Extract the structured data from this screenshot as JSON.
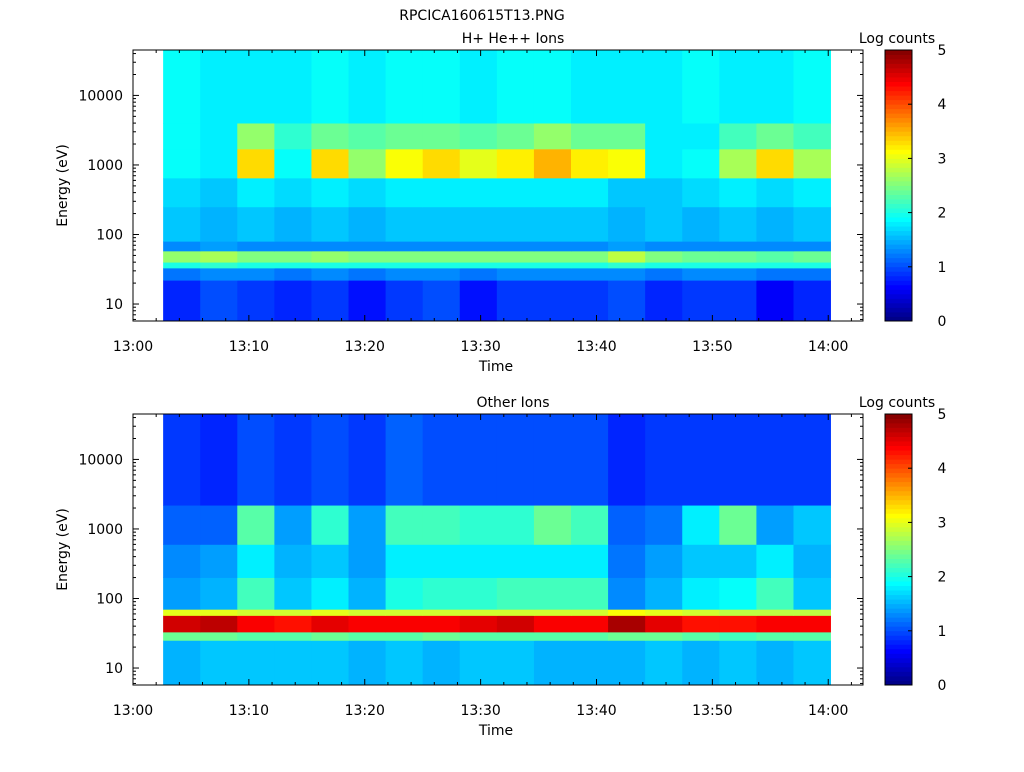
{
  "figure_title": "RPCICA160615T13.PNG",
  "chart_data": [
    {
      "type": "heatmap",
      "title": "H+ He++ Ions",
      "xlabel": "Time",
      "ylabel": "Energy (eV)",
      "colorbar_label": "Log counts",
      "x_ticks": [
        "13:00",
        "13:10",
        "13:20",
        "13:30",
        "13:40",
        "13:50",
        "14:00"
      ],
      "y_ticks": [
        "10",
        "100",
        "1000",
        "10000"
      ],
      "y_scale": "log",
      "x_range": [
        "13:00",
        "14:03"
      ],
      "y_range": [
        5.7,
        45000
      ],
      "colorbar_ticks": [
        "0",
        "1",
        "2",
        "3",
        "4",
        "5"
      ],
      "colorbar_range": [
        0,
        5
      ],
      "colormap": "jet",
      "time_start": "13:02.6",
      "time_end": "14:00.2",
      "time_bins": 18,
      "energy_bands": [
        {
          "energy_range": [
            5.7,
            22
          ],
          "log_counts": [
            0.8,
            1.0,
            0.9,
            0.8,
            0.9,
            0.7,
            0.9,
            1.0,
            0.7,
            0.9,
            0.9,
            0.9,
            1.0,
            0.8,
            0.9,
            0.9,
            0.6,
            0.8
          ]
        },
        {
          "energy_range": [
            22,
            33
          ],
          "log_counts": [
            1.2,
            1.3,
            1.3,
            1.2,
            1.3,
            1.2,
            1.3,
            1.3,
            1.2,
            1.3,
            1.3,
            1.3,
            1.3,
            1.2,
            1.3,
            1.3,
            1.2,
            1.2
          ]
        },
        {
          "energy_range": [
            33,
            40
          ],
          "log_counts": [
            2.0,
            2.1,
            2.0,
            2.0,
            2.0,
            2.0,
            2.0,
            2.0,
            2.0,
            2.0,
            2.0,
            2.0,
            2.1,
            2.0,
            2.0,
            2.0,
            2.0,
            2.0
          ]
        },
        {
          "energy_range": [
            40,
            58
          ],
          "log_counts": [
            2.6,
            2.7,
            2.5,
            2.5,
            2.6,
            2.5,
            2.5,
            2.5,
            2.5,
            2.5,
            2.5,
            2.5,
            2.8,
            2.5,
            2.4,
            2.4,
            2.3,
            2.4
          ]
        },
        {
          "energy_range": [
            58,
            80
          ],
          "log_counts": [
            1.3,
            1.4,
            1.3,
            1.3,
            1.3,
            1.3,
            1.3,
            1.3,
            1.3,
            1.3,
            1.3,
            1.3,
            1.4,
            1.3,
            1.3,
            1.3,
            1.3,
            1.3
          ]
        },
        {
          "energy_range": [
            80,
            250
          ],
          "log_counts": [
            1.6,
            1.5,
            1.6,
            1.5,
            1.6,
            1.5,
            1.6,
            1.6,
            1.6,
            1.6,
            1.6,
            1.6,
            1.5,
            1.6,
            1.5,
            1.6,
            1.5,
            1.6
          ]
        },
        {
          "energy_range": [
            250,
            650
          ],
          "log_counts": [
            1.7,
            1.6,
            1.8,
            1.7,
            1.8,
            1.7,
            1.8,
            1.8,
            1.8,
            1.8,
            1.8,
            1.8,
            1.6,
            1.6,
            1.7,
            1.8,
            1.7,
            1.8
          ]
        },
        {
          "energy_range": [
            650,
            1700
          ],
          "log_counts": [
            1.9,
            1.8,
            3.3,
            1.9,
            3.3,
            2.6,
            3.1,
            3.3,
            3.0,
            3.2,
            3.5,
            3.2,
            3.1,
            1.8,
            1.9,
            2.7,
            3.3,
            2.7
          ]
        },
        {
          "energy_range": [
            1700,
            4000
          ],
          "log_counts": [
            1.9,
            1.8,
            2.6,
            2.1,
            2.4,
            2.3,
            2.4,
            2.4,
            2.3,
            2.4,
            2.6,
            2.4,
            2.4,
            1.8,
            1.8,
            2.2,
            2.4,
            2.2
          ]
        },
        {
          "energy_range": [
            4000,
            45000
          ],
          "log_counts": [
            1.9,
            1.8,
            1.8,
            1.8,
            1.9,
            1.8,
            1.9,
            1.9,
            1.8,
            1.9,
            1.9,
            1.8,
            1.8,
            1.8,
            1.9,
            1.8,
            1.8,
            1.9
          ]
        }
      ]
    },
    {
      "type": "heatmap",
      "title": "Other Ions",
      "xlabel": "Time",
      "ylabel": "Energy (eV)",
      "colorbar_label": "Log counts",
      "x_ticks": [
        "13:00",
        "13:10",
        "13:20",
        "13:30",
        "13:40",
        "13:50",
        "14:00"
      ],
      "y_ticks": [
        "10",
        "100",
        "1000",
        "10000"
      ],
      "y_scale": "log",
      "x_range": [
        "13:00",
        "14:03"
      ],
      "y_range": [
        5.7,
        45000
      ],
      "colorbar_ticks": [
        "0",
        "1",
        "2",
        "3",
        "4",
        "5"
      ],
      "colorbar_range": [
        0,
        5
      ],
      "colormap": "jet",
      "time_start": "13:02.6",
      "time_end": "14:00.2",
      "time_bins": 18,
      "energy_bands": [
        {
          "energy_range": [
            5.7,
            25
          ],
          "log_counts": [
            1.5,
            1.6,
            1.6,
            1.6,
            1.6,
            1.5,
            1.6,
            1.5,
            1.6,
            1.6,
            1.5,
            1.5,
            1.5,
            1.6,
            1.5,
            1.6,
            1.5,
            1.6
          ]
        },
        {
          "energy_range": [
            25,
            33
          ],
          "log_counts": [
            2.4,
            2.4,
            2.3,
            2.3,
            2.4,
            2.3,
            2.3,
            2.4,
            2.3,
            2.3,
            2.3,
            2.3,
            2.4,
            2.4,
            2.3,
            2.2,
            2.3,
            2.3
          ]
        },
        {
          "energy_range": [
            33,
            57
          ],
          "log_counts": [
            4.6,
            4.7,
            4.4,
            4.3,
            4.5,
            4.4,
            4.4,
            4.4,
            4.5,
            4.6,
            4.4,
            4.4,
            4.8,
            4.5,
            4.3,
            4.3,
            4.4,
            4.4
          ]
        },
        {
          "energy_range": [
            57,
            70
          ],
          "log_counts": [
            3.0,
            3.0,
            2.9,
            2.9,
            3.0,
            2.9,
            2.9,
            2.9,
            2.9,
            2.9,
            2.9,
            2.9,
            3.1,
            3.0,
            2.9,
            2.8,
            2.8,
            2.8
          ]
        },
        {
          "energy_range": [
            70,
            200
          ],
          "log_counts": [
            1.4,
            1.5,
            2.2,
            1.6,
            1.8,
            1.5,
            2.0,
            2.1,
            2.1,
            2.2,
            2.2,
            2.2,
            1.3,
            1.5,
            1.8,
            1.9,
            2.2,
            1.6
          ]
        },
        {
          "energy_range": [
            200,
            600
          ],
          "log_counts": [
            1.3,
            1.4,
            1.8,
            1.5,
            1.6,
            1.4,
            1.8,
            1.8,
            1.8,
            1.8,
            1.8,
            1.8,
            1.2,
            1.4,
            1.6,
            1.6,
            1.8,
            1.5
          ]
        },
        {
          "energy_range": [
            600,
            2200
          ],
          "log_counts": [
            1.1,
            1.1,
            2.3,
            1.4,
            2.1,
            1.4,
            2.2,
            2.2,
            2.1,
            2.1,
            2.4,
            2.2,
            1.1,
            1.2,
            1.8,
            2.4,
            1.4,
            1.6
          ]
        },
        {
          "energy_range": [
            2200,
            45000
          ],
          "log_counts": [
            0.9,
            0.8,
            1.0,
            0.9,
            1.0,
            0.9,
            1.1,
            1.0,
            1.0,
            1.0,
            1.0,
            1.0,
            0.8,
            0.9,
            0.9,
            0.9,
            0.9,
            0.9
          ]
        }
      ]
    }
  ]
}
